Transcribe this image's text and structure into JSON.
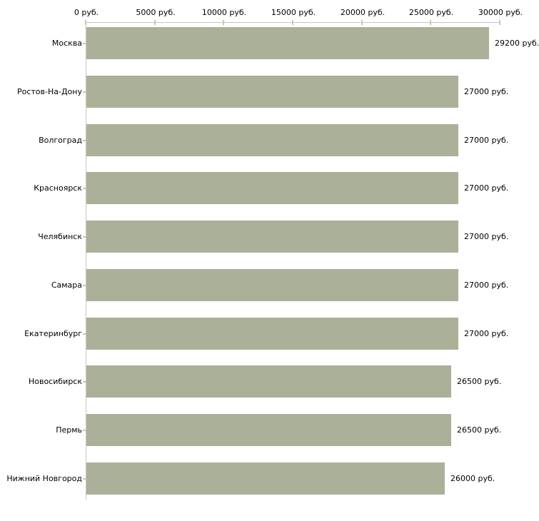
{
  "chart_data": {
    "type": "bar",
    "orientation": "horizontal",
    "title": "",
    "xlabel": "",
    "ylabel": "",
    "categories": [
      "Москва",
      "Ростов-На-Дону",
      "Волгоград",
      "Красноярск",
      "Челябинск",
      "Самара",
      "Екатеринбург",
      "Новосибирск",
      "Пермь",
      "Нижний Новгород"
    ],
    "values": [
      29200,
      27000,
      27000,
      27000,
      27000,
      27000,
      27000,
      26500,
      26500,
      26000
    ],
    "value_labels": [
      "29200 руб.",
      "27000 руб.",
      "27000 руб.",
      "27000 руб.",
      "27000 руб.",
      "27000 руб.",
      "27000 руб.",
      "26500 руб.",
      "26500 руб.",
      "26000 руб."
    ],
    "x_axis": {
      "min": 0,
      "max": 30000,
      "ticks": [
        0,
        5000,
        10000,
        15000,
        20000,
        25000,
        30000
      ],
      "tick_labels": [
        "0 руб.",
        "5000 руб.",
        "10000 руб.",
        "15000 руб.",
        "20000 руб.",
        "25000 руб.",
        "30000 руб."
      ],
      "position": "top"
    },
    "grid": false,
    "legend": false,
    "colors": {
      "bar": "#aab198",
      "axis_line": "#c6c6c6",
      "tick_mark": "#c9c99e",
      "text": "#000000",
      "background": "#ffffff"
    }
  }
}
